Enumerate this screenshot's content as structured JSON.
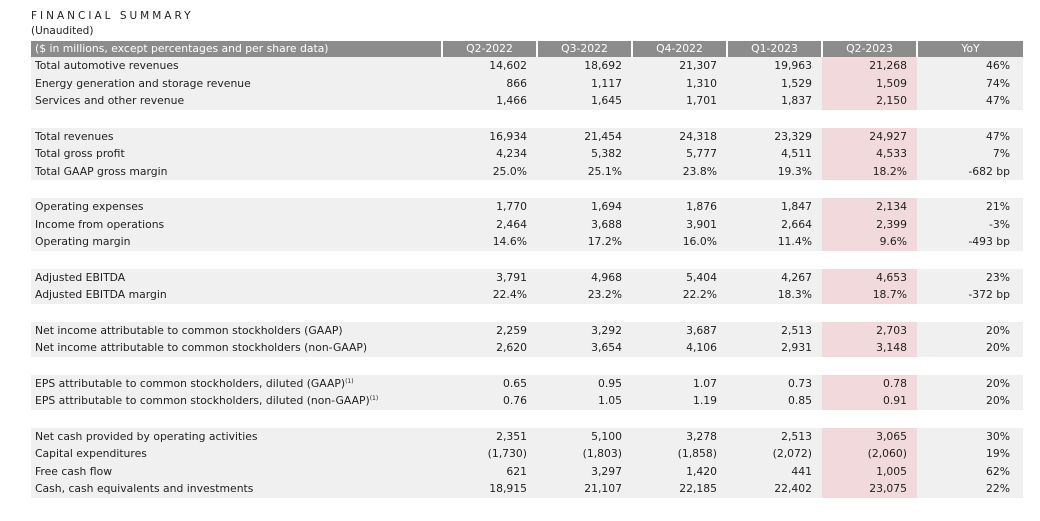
{
  "title": "FINANCIAL SUMMARY",
  "subtitle": "(Unaudited)",
  "header": {
    "label": "($ in millions, except percentages and per share data)",
    "columns": [
      "Q2-2022",
      "Q3-2022",
      "Q4-2022",
      "Q1-2023",
      "Q2-2023",
      "YoY"
    ]
  },
  "groups": [
    {
      "rows": [
        {
          "label": "Total automotive revenues",
          "values": [
            "14,602",
            "18,692",
            "21,307",
            "19,963",
            "21,268",
            "46%"
          ]
        },
        {
          "label": "Energy generation and storage revenue",
          "values": [
            "866",
            "1,117",
            "1,310",
            "1,529",
            "1,509",
            "74%"
          ]
        },
        {
          "label": "Services and other revenue",
          "values": [
            "1,466",
            "1,645",
            "1,701",
            "1,837",
            "2,150",
            "47%"
          ]
        }
      ]
    },
    {
      "rows": [
        {
          "label": "Total revenues",
          "values": [
            "16,934",
            "21,454",
            "24,318",
            "23,329",
            "24,927",
            "47%"
          ]
        },
        {
          "label": "Total gross profit",
          "values": [
            "4,234",
            "5,382",
            "5,777",
            "4,511",
            "4,533",
            "7%"
          ]
        },
        {
          "label": "Total GAAP gross margin",
          "values": [
            "25.0%",
            "25.1%",
            "23.8%",
            "19.3%",
            "18.2%",
            "-682 bp"
          ]
        }
      ]
    },
    {
      "rows": [
        {
          "label": "Operating expenses",
          "values": [
            "1,770",
            "1,694",
            "1,876",
            "1,847",
            "2,134",
            "21%"
          ]
        },
        {
          "label": "Income from operations",
          "values": [
            "2,464",
            "3,688",
            "3,901",
            "2,664",
            "2,399",
            "-3%"
          ]
        },
        {
          "label": "Operating margin",
          "values": [
            "14.6%",
            "17.2%",
            "16.0%",
            "11.4%",
            "9.6%",
            "-493 bp"
          ]
        }
      ]
    },
    {
      "rows": [
        {
          "label": "Adjusted EBITDA",
          "values": [
            "3,791",
            "4,968",
            "5,404",
            "4,267",
            "4,653",
            "23%"
          ]
        },
        {
          "label": "Adjusted EBITDA margin",
          "values": [
            "22.4%",
            "23.2%",
            "22.2%",
            "18.3%",
            "18.7%",
            "-372 bp"
          ]
        }
      ]
    },
    {
      "rows": [
        {
          "label": "Net income attributable to common stockholders (GAAP)",
          "values": [
            "2,259",
            "3,292",
            "3,687",
            "2,513",
            "2,703",
            "20%"
          ]
        },
        {
          "label": "Net income attributable to common stockholders (non-GAAP)",
          "values": [
            "2,620",
            "3,654",
            "4,106",
            "2,931",
            "3,148",
            "20%"
          ]
        }
      ]
    },
    {
      "rows": [
        {
          "label": "EPS attributable to common stockholders, diluted (GAAP)",
          "sup": "(1)",
          "values": [
            "0.65",
            "0.95",
            "1.07",
            "0.73",
            "0.78",
            "20%"
          ]
        },
        {
          "label": "EPS attributable to common stockholders, diluted (non-GAAP)",
          "sup": "(1)",
          "values": [
            "0.76",
            "1.05",
            "1.19",
            "0.85",
            "0.91",
            "20%"
          ]
        }
      ]
    },
    {
      "rows": [
        {
          "label": "Net cash provided by operating activities",
          "values": [
            "2,351",
            "5,100",
            "3,278",
            "2,513",
            "3,065",
            "30%"
          ]
        },
        {
          "label": "Capital expenditures",
          "values": [
            "(1,730)",
            "(1,803)",
            "(1,858)",
            "(2,072)",
            "(2,060)",
            "19%"
          ]
        },
        {
          "label": "Free cash flow",
          "values": [
            "621",
            "3,297",
            "1,420",
            "441",
            "1,005",
            "62%"
          ]
        },
        {
          "label": "Cash, cash equivalents and investments",
          "values": [
            "18,915",
            "21,107",
            "22,185",
            "22,402",
            "23,075",
            "22%"
          ]
        }
      ]
    }
  ],
  "colors": {
    "header_bg": "#8c8c8c",
    "row_shade": "#f0f0f0",
    "current_quarter_highlight": "#f2d9db"
  }
}
